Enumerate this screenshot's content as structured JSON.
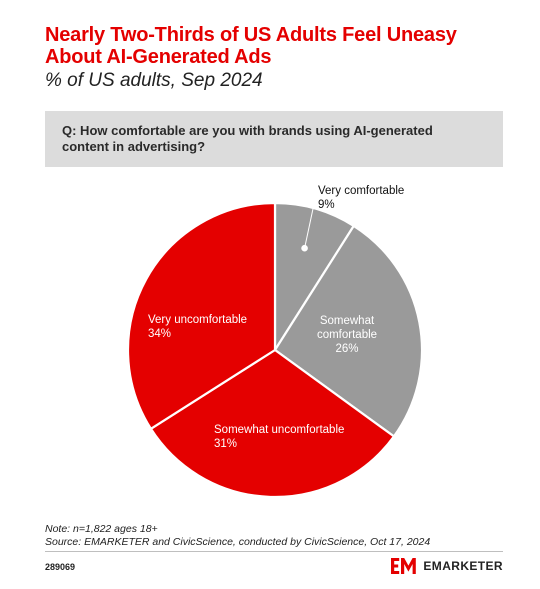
{
  "title": "Nearly Two-Thirds of US Adults Feel Uneasy About AI-Generated Ads",
  "subtitle": "% of US adults, Sep 2024",
  "question": "Q: How comfortable are you with brands using AI-generated content in advertising?",
  "chart_data": {
    "type": "pie",
    "slices": [
      {
        "label": "Very comfortable",
        "value": 9,
        "value_label": "9%",
        "color": "#9a9a9a"
      },
      {
        "label": "Somewhat comfortable",
        "value": 26,
        "value_label": "26%",
        "color": "#9a9a9a"
      },
      {
        "label": "Somewhat uncomfortable",
        "value": 31,
        "value_label": "31%",
        "color": "#e40000"
      },
      {
        "label": "Very uncomfortable",
        "value": 34,
        "value_label": "34%",
        "color": "#e40000"
      }
    ],
    "start": "12 o'clock",
    "direction": "clockwise",
    "legend": "none",
    "separator_color": "#ffffff"
  },
  "footer": {
    "note": "Note: n=1,822 ages 18+",
    "source": "Source: EMARKETER and CivicScience, conducted by CivicScience, Oct 17, 2024",
    "chart_id": "289069",
    "brand_name": "EMARKETER",
    "brand_color": "#e40000"
  }
}
